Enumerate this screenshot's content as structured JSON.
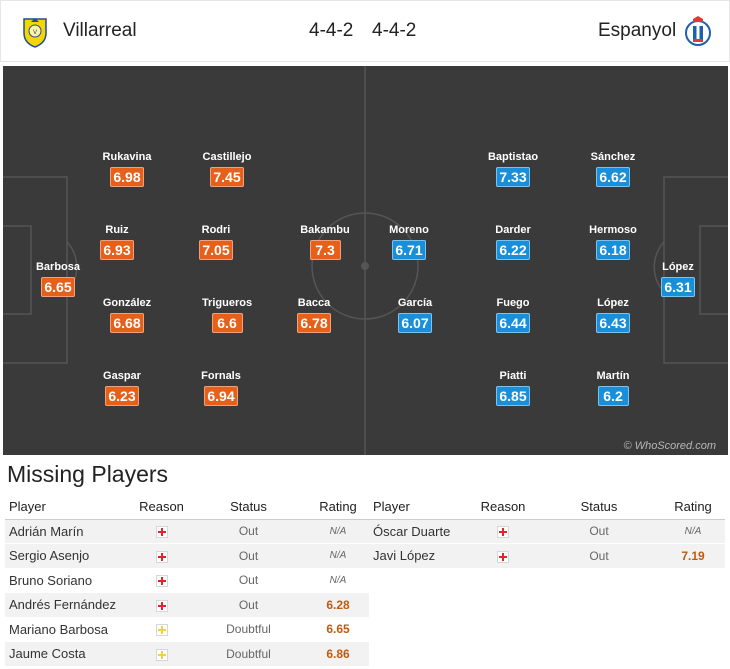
{
  "header": {
    "home": {
      "name": "Villarreal",
      "formation": "4-4-2",
      "crest_color": "#f5d600",
      "crest_icon": "villarreal-crest-icon"
    },
    "away": {
      "name": "Espanyol",
      "formation": "4-4-2",
      "crest_color": "#1f5fad",
      "crest_icon": "espanyol-crest-icon"
    }
  },
  "colors": {
    "home_rating": "#e7601a",
    "away_rating": "#1a8fd9",
    "pitch": "#3a3a3a"
  },
  "pitch": {
    "watermark": "© WhoScored.com",
    "home_players": [
      {
        "name": "Barbosa",
        "rating": "6.65"
      },
      {
        "name": "Rukavina",
        "rating": "6.98"
      },
      {
        "name": "Ruiz",
        "rating": "6.93"
      },
      {
        "name": "González",
        "rating": "6.68"
      },
      {
        "name": "Gaspar",
        "rating": "6.23"
      },
      {
        "name": "Castillejo",
        "rating": "7.45"
      },
      {
        "name": "Rodri",
        "rating": "7.05"
      },
      {
        "name": "Trigueros",
        "rating": "6.6"
      },
      {
        "name": "Fornals",
        "rating": "6.94"
      },
      {
        "name": "Bakambu",
        "rating": "7.3"
      },
      {
        "name": "Bacca",
        "rating": "6.78"
      }
    ],
    "away_players": [
      {
        "name": "Moreno",
        "rating": "6.71"
      },
      {
        "name": "García",
        "rating": "6.07"
      },
      {
        "name": "Baptistao",
        "rating": "7.33"
      },
      {
        "name": "Darder",
        "rating": "6.22"
      },
      {
        "name": "Fuego",
        "rating": "6.44"
      },
      {
        "name": "Piatti",
        "rating": "6.85"
      },
      {
        "name": "Sánchez",
        "rating": "6.62"
      },
      {
        "name": "Hermoso",
        "rating": "6.18"
      },
      {
        "name": "López",
        "rating": "6.43"
      },
      {
        "name": "Martín",
        "rating": "6.2"
      },
      {
        "name": "López",
        "rating": "6.31"
      }
    ]
  },
  "missing": {
    "title": "Missing Players",
    "columns": [
      "Player",
      "Reason",
      "Status",
      "Rating"
    ],
    "home": [
      {
        "player": "Adrián Marín",
        "reason": "injury",
        "status": "Out",
        "rating": "N/A"
      },
      {
        "player": "Sergio Asenjo",
        "reason": "injury",
        "status": "Out",
        "rating": "N/A"
      },
      {
        "player": "Bruno Soriano",
        "reason": "injury",
        "status": "Out",
        "rating": "N/A"
      },
      {
        "player": "Andrés Fernández",
        "reason": "injury",
        "status": "Out",
        "rating": "6.28"
      },
      {
        "player": "Mariano Barbosa",
        "reason": "doubtful",
        "status": "Doubtful",
        "rating": "6.65"
      },
      {
        "player": "Jaume Costa",
        "reason": "doubtful",
        "status": "Doubtful",
        "rating": "6.86"
      }
    ],
    "away": [
      {
        "player": "Óscar Duarte",
        "reason": "injury",
        "status": "Out",
        "rating": "N/A"
      },
      {
        "player": "Javi López",
        "reason": "injury",
        "status": "Out",
        "rating": "7.19"
      }
    ]
  }
}
